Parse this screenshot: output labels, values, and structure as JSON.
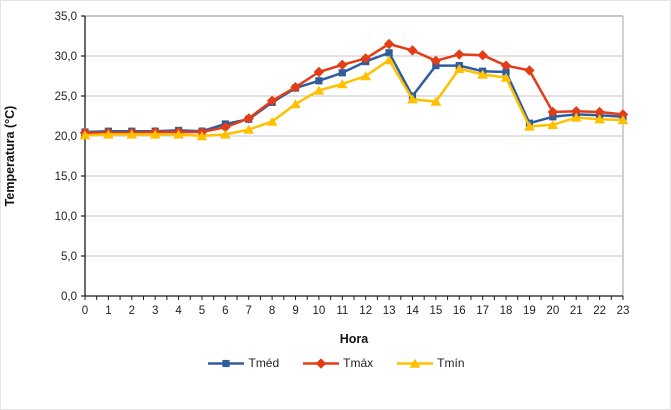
{
  "chart_data": {
    "type": "line",
    "title": "",
    "xlabel": "Hora",
    "ylabel": "Temperatura (°C)",
    "x": [
      0,
      1,
      2,
      3,
      4,
      5,
      6,
      7,
      8,
      9,
      10,
      11,
      12,
      13,
      14,
      15,
      16,
      17,
      18,
      19,
      20,
      21,
      22,
      23
    ],
    "x_ticks": [
      "0",
      "1",
      "2",
      "3",
      "4",
      "5",
      "6",
      "7",
      "8",
      "9",
      "10",
      "11",
      "12",
      "13",
      "14",
      "15",
      "16",
      "17",
      "18",
      "19",
      "20",
      "21",
      "22",
      "23"
    ],
    "y_ticks": [
      "0,0",
      "5,0",
      "10,0",
      "15,0",
      "20,0",
      "25,0",
      "30,0",
      "35,0"
    ],
    "ylim": [
      0,
      35
    ],
    "y_step": 5,
    "grid": "horizontal",
    "legend_position": "bottom",
    "series": [
      {
        "name": "Tméd",
        "color": "#2E5C9E",
        "marker": "square",
        "values": [
          20.5,
          20.6,
          20.6,
          20.6,
          20.7,
          20.6,
          21.5,
          22.1,
          24.2,
          26.0,
          26.9,
          27.9,
          29.3,
          30.4,
          25.0,
          28.8,
          28.8,
          28.1,
          28.0,
          21.6,
          22.4,
          22.7,
          22.6,
          22.4
        ]
      },
      {
        "name": "Tmáx",
        "color": "#E33D18",
        "marker": "diamond",
        "values": [
          20.4,
          20.4,
          20.4,
          20.5,
          20.5,
          20.5,
          21.1,
          22.2,
          24.4,
          26.1,
          28.0,
          28.9,
          29.7,
          31.5,
          30.7,
          29.4,
          30.2,
          30.1,
          28.8,
          28.2,
          23.0,
          23.1,
          23.0,
          22.7
        ]
      },
      {
        "name": "Tmín",
        "color": "#FFC000",
        "marker": "triangle",
        "values": [
          20.1,
          20.2,
          20.2,
          20.2,
          20.2,
          20.0,
          20.2,
          20.8,
          21.8,
          24.0,
          25.7,
          26.5,
          27.5,
          29.5,
          24.6,
          24.3,
          28.4,
          27.7,
          27.3,
          21.2,
          21.4,
          22.3,
          22.1,
          22.0
        ]
      }
    ]
  },
  "colors": {
    "gridline": "#c6c6c6",
    "plot_border": "#a3a3a3",
    "axis": "#1a1a1a",
    "tick_text": "#1f1f1f"
  }
}
